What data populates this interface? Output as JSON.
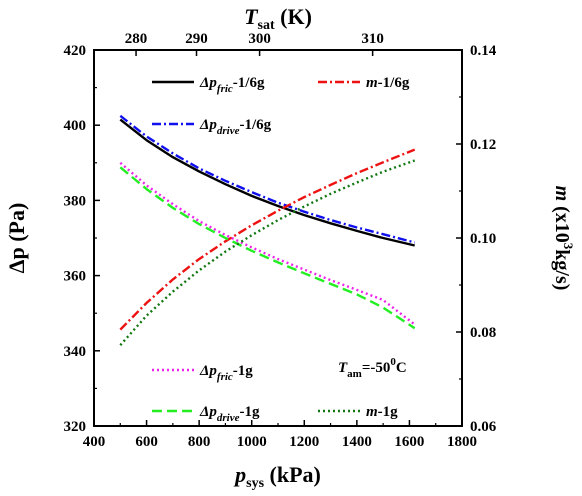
{
  "chart_data": {
    "type": "line",
    "axes": {
      "bottom": {
        "label_main": "p",
        "label_sub": "sys",
        "label_unit": " (kPa)",
        "range": [
          400,
          1800
        ],
        "ticks": [
          400,
          600,
          800,
          1000,
          1200,
          1400,
          1600,
          1800
        ]
      },
      "left": {
        "label_main": "Δp",
        "label_unit": " (Pa)",
        "range": [
          320,
          420
        ],
        "ticks": [
          320,
          340,
          360,
          380,
          400,
          420
        ]
      },
      "right": {
        "label_main": "m",
        "label_unit_pre": " (x10",
        "label_sup": "3",
        "label_unit_post": "kg/s)",
        "range": [
          0.06,
          0.14
        ],
        "ticks": [
          "0.06",
          "0.08",
          "0.10",
          "0.12",
          "0.14"
        ]
      },
      "top": {
        "label_main": "T",
        "label_sub": "sat",
        "label_unit": " (K)",
        "ticks": [
          {
            "label": "280",
            "x_data": 560
          },
          {
            "label": "290",
            "x_data": 790
          },
          {
            "label": "300",
            "x_data": 1030
          },
          {
            "label": "310",
            "x_data": 1460
          }
        ]
      }
    },
    "grid": false,
    "series": [
      {
        "id": "dpfric-16",
        "axis": "left",
        "color": "#000000",
        "dash": "solid",
        "legend": {
          "main": "Δp",
          "sub": "fric",
          "suffix": "-1/6g"
        },
        "x": [
          500,
          600,
          700,
          800,
          900,
          1000,
          1100,
          1200,
          1300,
          1400,
          1500,
          1620
        ],
        "y": [
          401.5,
          396,
          391.5,
          387.7,
          384.3,
          381.2,
          378.5,
          376.1,
          373.9,
          371.9,
          370,
          368
        ]
      },
      {
        "id": "dpdrive-16",
        "axis": "left",
        "color": "#1010ee",
        "dash": "dashdot",
        "legend": {
          "main": "Δp",
          "sub": "drive",
          "suffix": "-1/6g"
        },
        "x": [
          500,
          600,
          700,
          800,
          900,
          1000,
          1100,
          1200,
          1300,
          1400,
          1500,
          1620
        ],
        "y": [
          402.5,
          397,
          392.5,
          388.5,
          385.2,
          382.2,
          379.4,
          377,
          374.8,
          372.8,
          371,
          368.8
        ]
      },
      {
        "id": "m-16",
        "axis": "right",
        "color": "#ee1111",
        "dash": "dashdot",
        "legend": {
          "main": "m",
          "sub": "",
          "suffix": "-1/6g"
        },
        "x": [
          500,
          600,
          700,
          800,
          900,
          1000,
          1100,
          1200,
          1300,
          1400,
          1500,
          1620
        ],
        "y": [
          0.0805,
          0.0862,
          0.0912,
          0.0955,
          0.0993,
          0.1027,
          0.1058,
          0.1087,
          0.1113,
          0.1138,
          0.1161,
          0.1188
        ]
      },
      {
        "id": "dpfric-1",
        "axis": "left",
        "color": "#ee22ee",
        "dash": "dotted",
        "legend": {
          "main": "Δp",
          "sub": "fric",
          "suffix": "-1g"
        },
        "x": [
          500,
          600,
          700,
          800,
          900,
          1000,
          1100,
          1200,
          1300,
          1400,
          1500,
          1620
        ],
        "y": [
          390,
          384,
          379,
          374.5,
          370.8,
          367.5,
          364.4,
          361.6,
          358.8,
          356.2,
          353.5,
          347
        ]
      },
      {
        "id": "dpdrive-1",
        "axis": "left",
        "color": "#22ee22",
        "dash": "dashed",
        "legend": {
          "main": "Δp",
          "sub": "drive",
          "suffix": "-1g"
        },
        "x": [
          500,
          600,
          700,
          800,
          900,
          1000,
          1100,
          1200,
          1300,
          1400,
          1500,
          1620
        ],
        "y": [
          388.8,
          383,
          378,
          373.7,
          370,
          366.6,
          363.5,
          360.6,
          357.8,
          355,
          351.5,
          346
        ]
      },
      {
        "id": "m-1",
        "axis": "right",
        "color": "#117711",
        "dash": "dotted",
        "legend": {
          "main": "m",
          "sub": "",
          "suffix": "-1g"
        },
        "x": [
          500,
          600,
          700,
          800,
          900,
          1000,
          1100,
          1200,
          1300,
          1400,
          1500,
          1620
        ],
        "y": [
          0.0772,
          0.0835,
          0.0886,
          0.0931,
          0.0971,
          0.1006,
          0.1038,
          0.1067,
          0.1094,
          0.1118,
          0.1141,
          0.1165
        ]
      }
    ],
    "annotation": {
      "main": "T",
      "sub": "am",
      "value": "=-50",
      "sup": "0",
      "unit": "C"
    }
  }
}
